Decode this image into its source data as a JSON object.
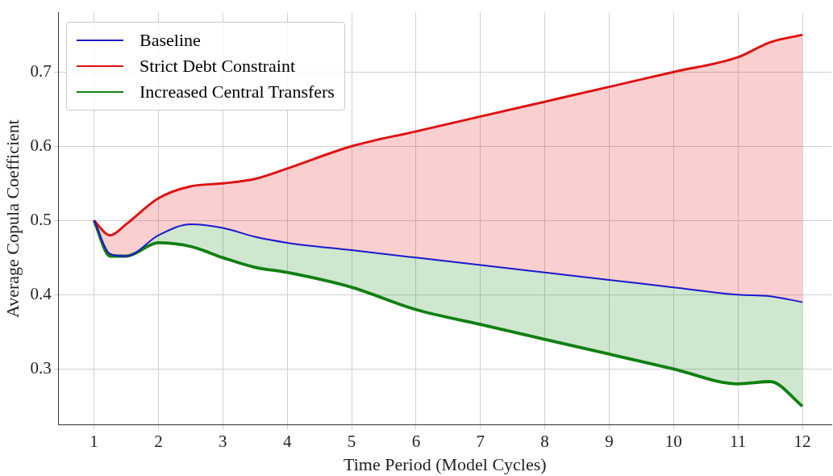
{
  "chart_data": {
    "type": "line",
    "xlabel": "Time Period (Model Cycles)",
    "ylabel": "Average Copula Coefficient",
    "x": [
      1,
      1.25,
      1.5,
      2,
      2.5,
      3,
      3.5,
      4,
      5,
      6,
      7,
      8,
      9,
      10,
      11,
      11.5,
      12
    ],
    "series": [
      {
        "name": "Baseline",
        "color": "#1a1acc",
        "values": [
          0.5,
          0.455,
          0.452,
          0.48,
          0.495,
          0.49,
          0.478,
          0.47,
          0.46,
          0.45,
          0.44,
          0.43,
          0.42,
          0.41,
          0.4,
          0.398,
          0.39
        ]
      },
      {
        "name": "Strict Debt Constraint",
        "color": "#e01010",
        "values": [
          0.5,
          0.48,
          0.495,
          0.53,
          0.546,
          0.55,
          0.556,
          0.57,
          0.6,
          0.62,
          0.64,
          0.66,
          0.68,
          0.7,
          0.72,
          0.74,
          0.75
        ],
        "lower": [
          0.5,
          0.455,
          0.452,
          0.48,
          0.495,
          0.49,
          0.478,
          0.47,
          0.46,
          0.45,
          0.44,
          0.43,
          0.42,
          0.41,
          0.4,
          0.398,
          0.39
        ],
        "upper": [
          0.5,
          0.48,
          0.495,
          0.53,
          0.546,
          0.55,
          0.556,
          0.57,
          0.6,
          0.62,
          0.64,
          0.66,
          0.68,
          0.7,
          0.72,
          0.74,
          0.75
        ]
      },
      {
        "name": "Increased Central Transfers",
        "color": "#108010",
        "values": [
          0.5,
          0.452,
          0.452,
          0.47,
          0.465,
          0.45,
          0.437,
          0.43,
          0.41,
          0.38,
          0.36,
          0.34,
          0.32,
          0.3,
          0.28,
          0.283,
          0.25
        ],
        "lower": [
          0.5,
          0.452,
          0.452,
          0.47,
          0.465,
          0.45,
          0.437,
          0.43,
          0.41,
          0.38,
          0.36,
          0.34,
          0.32,
          0.3,
          0.28,
          0.283,
          0.25
        ],
        "upper": [
          0.5,
          0.455,
          0.452,
          0.48,
          0.495,
          0.49,
          0.478,
          0.47,
          0.46,
          0.45,
          0.44,
          0.43,
          0.42,
          0.41,
          0.4,
          0.398,
          0.39
        ]
      }
    ],
    "xlim": [
      0.45,
      12.45
    ],
    "xticks": [
      1,
      2,
      3,
      4,
      5,
      6,
      7,
      8,
      9,
      10,
      11,
      12
    ],
    "ylim": [
      0.225,
      0.78
    ],
    "yticks": [
      0.3,
      0.4,
      0.5,
      0.6,
      0.7
    ],
    "grid": true,
    "legend": "top left",
    "marker": "none",
    "line_style": "solid"
  }
}
